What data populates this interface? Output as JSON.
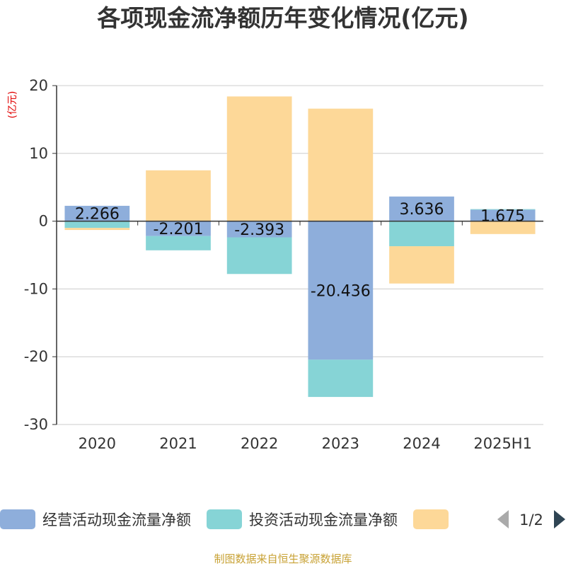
{
  "chart_data": {
    "type": "bar",
    "stacked": true,
    "title": "各项现金流净额历年变化情况(亿元)",
    "unit_label": "(亿元)",
    "categories": [
      "2020",
      "2021",
      "2022",
      "2023",
      "2024",
      "2025H1"
    ],
    "ylim": [
      -30,
      20
    ],
    "yticks": [
      20,
      10,
      0,
      -10,
      -20,
      -30
    ],
    "grid": true,
    "series": [
      {
        "name": "经营活动现金流量净额",
        "color": "#8eaedb",
        "values": [
          2.266,
          -2.201,
          -2.393,
          -20.436,
          3.636,
          1.675
        ],
        "labels": [
          "2.266",
          "-2.201",
          "-2.393",
          "-20.436",
          "3.636",
          "1.675"
        ]
      },
      {
        "name": "投资活动现金流量净额",
        "color": "#86d4d6",
        "values": [
          -1.0,
          -2.1,
          -5.4,
          -5.5,
          -3.7,
          0.1
        ],
        "labels": null
      },
      {
        "name": "",
        "color": "#fdd898",
        "values": [
          -0.3,
          7.5,
          18.4,
          16.6,
          -5.5,
          -1.9
        ],
        "labels": null
      }
    ],
    "legend_position": "bottom",
    "legend_page": "1/2"
  },
  "footer": {
    "source": "制图数据来自恒生聚源数据库"
  }
}
